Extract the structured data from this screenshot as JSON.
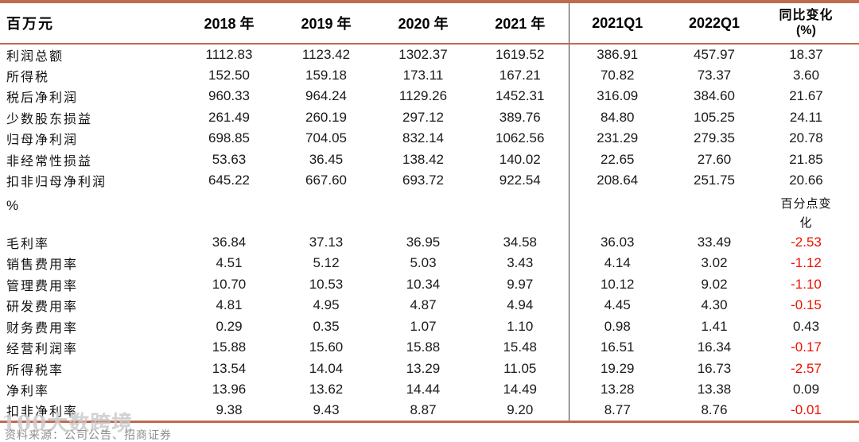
{
  "table": {
    "columns": [
      {
        "label": "百万元"
      },
      {
        "label": "2018 年"
      },
      {
        "label": "2019 年"
      },
      {
        "label": "2020 年"
      },
      {
        "label": "2021 年"
      },
      {
        "label": "2021Q1"
      },
      {
        "label": "2022Q1"
      },
      {
        "label": "同比变化",
        "sub": "(%)"
      }
    ],
    "sections": [
      {
        "header": null,
        "rows": [
          {
            "label": "利润总额",
            "values": [
              "1112.83",
              "1123.42",
              "1302.37",
              "1619.52",
              "386.91",
              "457.97",
              "18.37"
            ]
          },
          {
            "label": "所得税",
            "values": [
              "152.50",
              "159.18",
              "173.11",
              "167.21",
              "70.82",
              "73.37",
              "3.60"
            ]
          },
          {
            "label": "税后净利润",
            "values": [
              "960.33",
              "964.24",
              "1129.26",
              "1452.31",
              "316.09",
              "384.60",
              "21.67"
            ]
          },
          {
            "label": "少数股东损益",
            "values": [
              "261.49",
              "260.19",
              "297.12",
              "389.76",
              "84.80",
              "105.25",
              "24.11"
            ]
          },
          {
            "label": "归母净利润",
            "values": [
              "698.85",
              "704.05",
              "832.14",
              "1062.56",
              "231.29",
              "279.35",
              "20.78"
            ]
          },
          {
            "label": "非经常性损益",
            "values": [
              "53.63",
              "36.45",
              "138.42",
              "140.02",
              "22.65",
              "27.60",
              "21.85"
            ]
          },
          {
            "label": "扣非归母净利润",
            "values": [
              "645.22",
              "667.60",
              "693.72",
              "922.54",
              "208.64",
              "251.75",
              "20.66"
            ]
          }
        ]
      },
      {
        "header": {
          "label": "%",
          "note_lines": [
            "百分点变",
            "化"
          ]
        },
        "rows": [
          {
            "label": "毛利率",
            "values": [
              "36.84",
              "37.13",
              "36.95",
              "34.58",
              "36.03",
              "33.49",
              "-2.53"
            ]
          },
          {
            "label": "销售费用率",
            "values": [
              "4.51",
              "5.12",
              "5.03",
              "3.43",
              "4.14",
              "3.02",
              "-1.12"
            ]
          },
          {
            "label": "管理费用率",
            "values": [
              "10.70",
              "10.53",
              "10.34",
              "9.97",
              "10.12",
              "9.02",
              "-1.10"
            ]
          },
          {
            "label": "研发费用率",
            "values": [
              "4.81",
              "4.95",
              "4.87",
              "4.94",
              "4.45",
              "4.30",
              "-0.15"
            ]
          },
          {
            "label": "财务费用率",
            "values": [
              "0.29",
              "0.35",
              "1.07",
              "1.10",
              "0.98",
              "1.41",
              "0.43"
            ]
          },
          {
            "label": "经营利润率",
            "values": [
              "15.88",
              "15.60",
              "15.88",
              "15.48",
              "16.51",
              "16.34",
              "-0.17"
            ]
          },
          {
            "label": "所得税率",
            "values": [
              "13.54",
              "14.04",
              "13.29",
              "11.05",
              "19.29",
              "16.73",
              "-2.57"
            ]
          },
          {
            "label": "净利率",
            "values": [
              "13.96",
              "13.62",
              "14.44",
              "14.49",
              "13.28",
              "13.38",
              "0.09"
            ]
          },
          {
            "label": "扣非净利率",
            "values": [
              "9.38",
              "9.43",
              "8.87",
              "9.20",
              "8.77",
              "8.76",
              "-0.01"
            ]
          }
        ]
      }
    ]
  },
  "footer": {
    "source_text": "资料来源：公司公告、招商证券"
  },
  "watermark": {
    "text": "100大数跨境"
  },
  "colors": {
    "rule": "#c06a4e",
    "negative": "#ee1100",
    "divider": "#3d3d3d",
    "footer_gray": "#8f8f8f"
  }
}
